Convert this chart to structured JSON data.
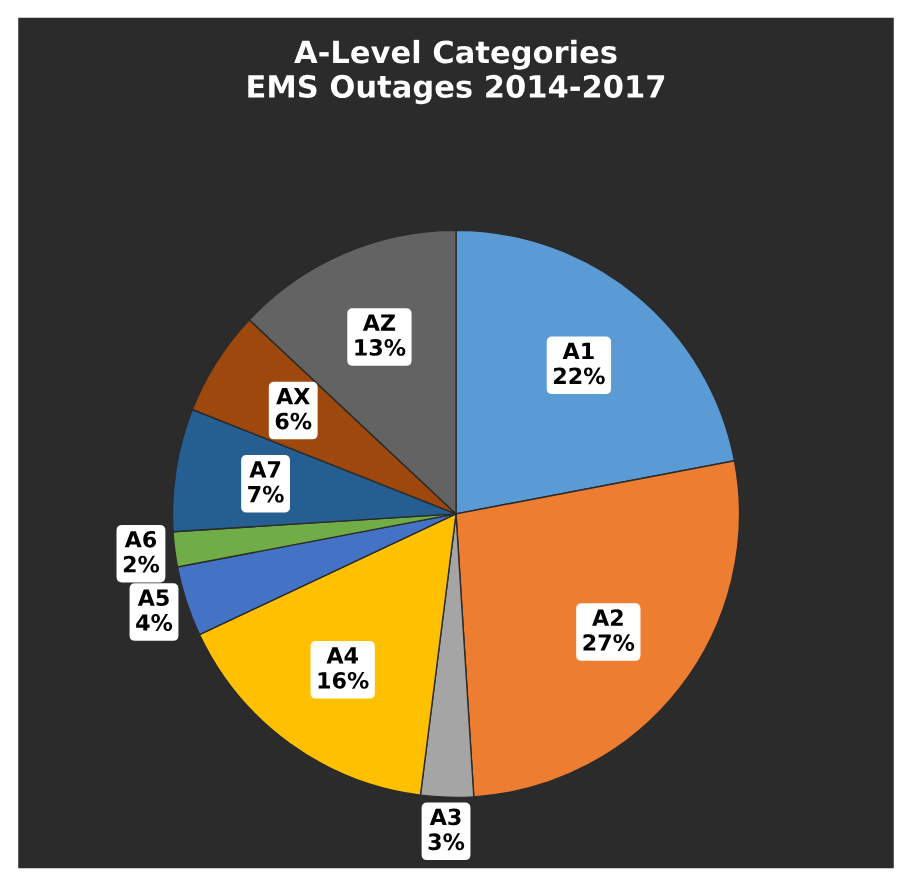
{
  "chart_data": {
    "type": "pie",
    "title": "A-Level Categories\nEMS Outages 2014-2017",
    "categories": [
      "A1",
      "A2",
      "A3",
      "A4",
      "A5",
      "A6",
      "A7",
      "AX",
      "AZ"
    ],
    "values": [
      22,
      27,
      3,
      16,
      4,
      2,
      7,
      6,
      13
    ],
    "value_labels": [
      "22%",
      "27%",
      "3%",
      "16%",
      "4%",
      "2%",
      "7%",
      "6%",
      "13%"
    ],
    "colors": [
      "#5b9bd5",
      "#ed7d31",
      "#a5a5a5",
      "#ffc000",
      "#4472c4",
      "#70ad47",
      "#255e91",
      "#9e480e",
      "#636363"
    ],
    "legend": false
  }
}
